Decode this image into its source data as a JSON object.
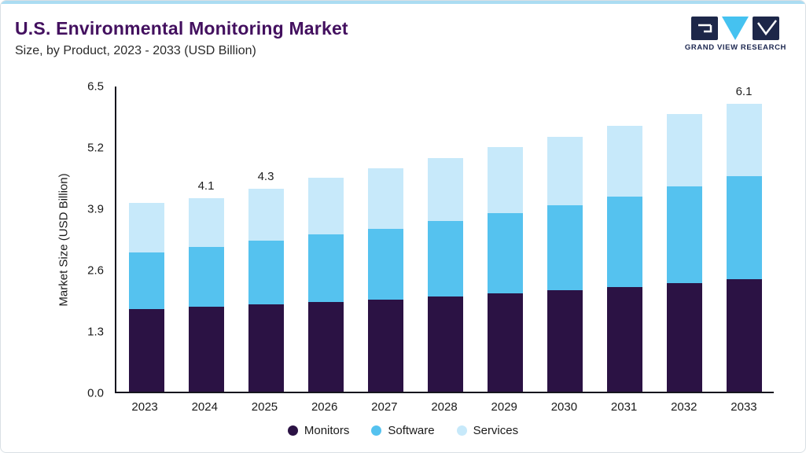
{
  "header": {
    "title": "U.S. Environmental Monitoring Market",
    "subtitle": "Size, by Product, 2023 - 2033 (USD Billion)"
  },
  "logo": {
    "text": "GRAND VIEW RESEARCH"
  },
  "chart_data": {
    "type": "bar",
    "stacked": true,
    "title": "U.S. Environmental Monitoring Market Size, by Product, 2023 - 2033 (USD Billion)",
    "ylabel": "Market Size (USD Billion)",
    "ylim": [
      0,
      6.5
    ],
    "ytick_labels": [
      "0.0",
      "1.3",
      "2.6",
      "3.9",
      "5.2",
      "6.5"
    ],
    "grid": false,
    "legend_position": "bottom",
    "categories": [
      "2023",
      "2024",
      "2025",
      "2026",
      "2027",
      "2028",
      "2029",
      "2030",
      "2031",
      "2032",
      "2033"
    ],
    "series": [
      {
        "name": "Monitors",
        "color": "#2b1244",
        "values": [
          1.75,
          1.8,
          1.85,
          1.9,
          1.95,
          2.02,
          2.08,
          2.15,
          2.22,
          2.3,
          2.38
        ]
      },
      {
        "name": "Software",
        "color": "#55c2ef",
        "values": [
          1.2,
          1.27,
          1.35,
          1.43,
          1.5,
          1.6,
          1.7,
          1.8,
          1.92,
          2.05,
          2.18
        ]
      },
      {
        "name": "Services",
        "color": "#c7e9fa",
        "values": [
          1.05,
          1.03,
          1.1,
          1.2,
          1.28,
          1.33,
          1.4,
          1.45,
          1.5,
          1.53,
          1.54
        ]
      }
    ],
    "bar_total_labels": [
      "",
      "4.1",
      "4.3",
      "",
      "",
      "",
      "",
      "",
      "",
      "",
      "6.1"
    ]
  },
  "colors": {
    "accent_line": "#abdcf2",
    "axis": "#15151e",
    "title_text": "#43105f",
    "logo_navy": "#1d2749",
    "logo_blue": "#45c2f0"
  }
}
